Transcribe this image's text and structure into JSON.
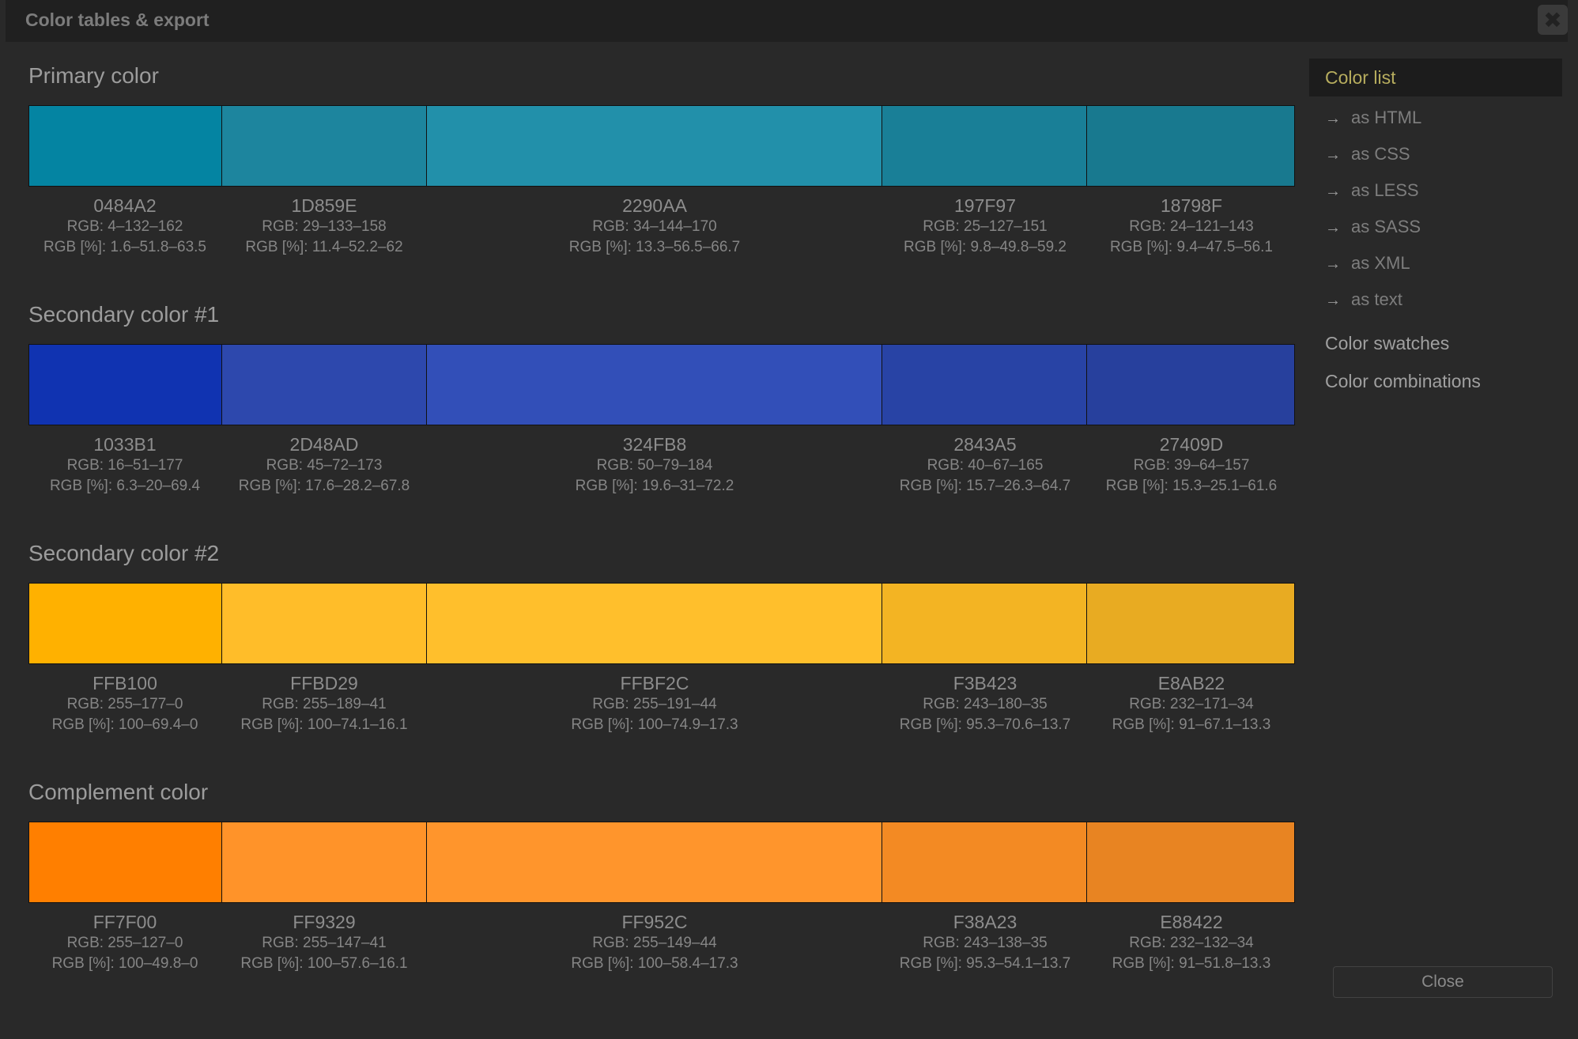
{
  "window": {
    "title": "Color tables & export",
    "close_icon": "close-icon"
  },
  "groups": [
    {
      "title": "Primary color",
      "swatches": [
        {
          "hex": "0484A2",
          "rgb": "RGB: 4–132–162",
          "rgbp": "RGB [%]: 1.6–51.8–63.5",
          "color": "#0484A2"
        },
        {
          "hex": "1D859E",
          "rgb": "RGB: 29–133–158",
          "rgbp": "RGB [%]: 11.4–52.2–62",
          "color": "#1D859E"
        },
        {
          "hex": "2290AA",
          "rgb": "RGB: 34–144–170",
          "rgbp": "RGB [%]: 13.3–56.5–66.7",
          "color": "#2290AA"
        },
        {
          "hex": "197F97",
          "rgb": "RGB: 25–127–151",
          "rgbp": "RGB [%]: 9.8–49.8–59.2",
          "color": "#197F97"
        },
        {
          "hex": "18798F",
          "rgb": "RGB: 24–121–143",
          "rgbp": "RGB [%]: 9.4–47.5–56.1",
          "color": "#18798F"
        }
      ]
    },
    {
      "title": "Secondary color #1",
      "swatches": [
        {
          "hex": "1033B1",
          "rgb": "RGB: 16–51–177",
          "rgbp": "RGB [%]: 6.3–20–69.4",
          "color": "#1033B1"
        },
        {
          "hex": "2D48AD",
          "rgb": "RGB: 45–72–173",
          "rgbp": "RGB [%]: 17.6–28.2–67.8",
          "color": "#2D48AD"
        },
        {
          "hex": "324FB8",
          "rgb": "RGB: 50–79–184",
          "rgbp": "RGB [%]: 19.6–31–72.2",
          "color": "#324FB8"
        },
        {
          "hex": "2843A5",
          "rgb": "RGB: 40–67–165",
          "rgbp": "RGB [%]: 15.7–26.3–64.7",
          "color": "#2843A5"
        },
        {
          "hex": "27409D",
          "rgb": "RGB: 39–64–157",
          "rgbp": "RGB [%]: 15.3–25.1–61.6",
          "color": "#27409D"
        }
      ]
    },
    {
      "title": "Secondary color #2",
      "swatches": [
        {
          "hex": "FFB100",
          "rgb": "RGB: 255–177–0",
          "rgbp": "RGB [%]: 100–69.4–0",
          "color": "#FFB100"
        },
        {
          "hex": "FFBD29",
          "rgb": "RGB: 255–189–41",
          "rgbp": "RGB [%]: 100–74.1–16.1",
          "color": "#FFBD29"
        },
        {
          "hex": "FFBF2C",
          "rgb": "RGB: 255–191–44",
          "rgbp": "RGB [%]: 100–74.9–17.3",
          "color": "#FFBF2C"
        },
        {
          "hex": "F3B423",
          "rgb": "RGB: 243–180–35",
          "rgbp": "RGB [%]: 95.3–70.6–13.7",
          "color": "#F3B423"
        },
        {
          "hex": "E8AB22",
          "rgb": "RGB: 232–171–34",
          "rgbp": "RGB [%]: 91–67.1–13.3",
          "color": "#E8AB22"
        }
      ]
    },
    {
      "title": "Complement color",
      "swatches": [
        {
          "hex": "FF7F00",
          "rgb": "RGB: 255–127–0",
          "rgbp": "RGB [%]: 100–49.8–0",
          "color": "#FF7F00"
        },
        {
          "hex": "FF9329",
          "rgb": "RGB: 255–147–41",
          "rgbp": "RGB [%]: 100–57.6–16.1",
          "color": "#FF9329"
        },
        {
          "hex": "FF952C",
          "rgb": "RGB: 255–149–44",
          "rgbp": "RGB [%]: 100–58.4–17.3",
          "color": "#FF952C"
        },
        {
          "hex": "F38A23",
          "rgb": "RGB: 243–138–35",
          "rgbp": "RGB [%]: 95.3–54.1–13.7",
          "color": "#F38A23"
        },
        {
          "hex": "E88422",
          "rgb": "RGB: 232–132–34",
          "rgbp": "RGB [%]: 91–51.8–13.3",
          "color": "#E88422"
        }
      ]
    }
  ],
  "sidebar": {
    "active": "Color list",
    "sub_items": [
      {
        "label": "as HTML",
        "icon": "arrow-right-icon"
      },
      {
        "label": "as CSS",
        "icon": "arrow-right-icon"
      },
      {
        "label": "as LESS",
        "icon": "arrow-right-icon"
      },
      {
        "label": "as SASS",
        "icon": "arrow-right-icon"
      },
      {
        "label": "as XML",
        "icon": "arrow-right-icon"
      },
      {
        "label": "as text",
        "icon": "arrow-right-icon"
      }
    ],
    "items": [
      {
        "label": "Color swatches"
      },
      {
        "label": "Color combinations"
      }
    ]
  },
  "footer": {
    "close_label": "Close"
  },
  "colors": {
    "background": "#292929",
    "titlebar": "#202020",
    "active_item": "#b7ad5e"
  }
}
